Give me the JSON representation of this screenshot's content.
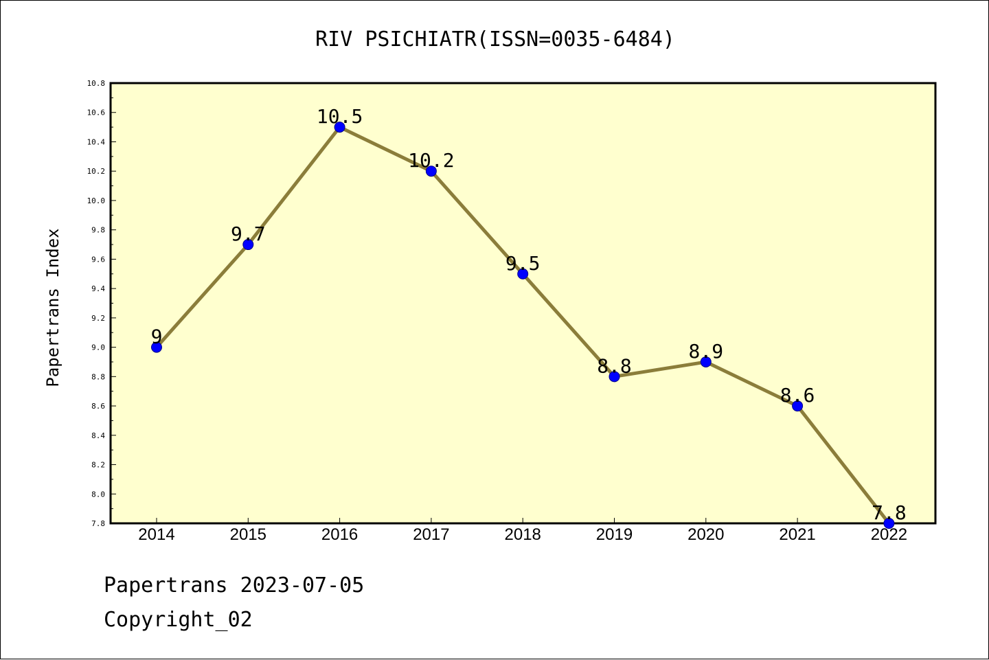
{
  "colors": {
    "background": "#ffffff",
    "plot_area": "#ffffcf",
    "line": "#8b7d3a",
    "marker_fill": "#0000ff",
    "marker_edge": "#00008b",
    "text": "#000000"
  },
  "chart_data": {
    "type": "line",
    "title": "RIV PSICHIATR(ISSN=0035-6484)",
    "xlabel": "",
    "ylabel": "Papertrans Index",
    "categories": [
      "2014",
      "2015",
      "2016",
      "2017",
      "2018",
      "2019",
      "2020",
      "2021",
      "2022"
    ],
    "values": [
      9,
      9.7,
      10.5,
      10.2,
      9.5,
      8.8,
      8.9,
      8.6,
      7.8
    ],
    "data_labels": [
      "9",
      "9.7",
      "10.5",
      "10.2",
      "9.5",
      "8.8",
      "8.9",
      "8.6",
      "7.8"
    ],
    "ylim": [
      7.8,
      10.8
    ],
    "yticks": [
      "7.8",
      "8.0",
      "8.2",
      "8.4",
      "8.6",
      "8.8",
      "9.0",
      "9.2",
      "9.4",
      "9.6",
      "9.8",
      "10.0",
      "10.2",
      "10.4",
      "10.6",
      "10.8"
    ],
    "grid": false,
    "legend": "none"
  },
  "footer": {
    "date_line": "Papertrans 2023-07-05",
    "copyright_line": "Copyright_02"
  }
}
